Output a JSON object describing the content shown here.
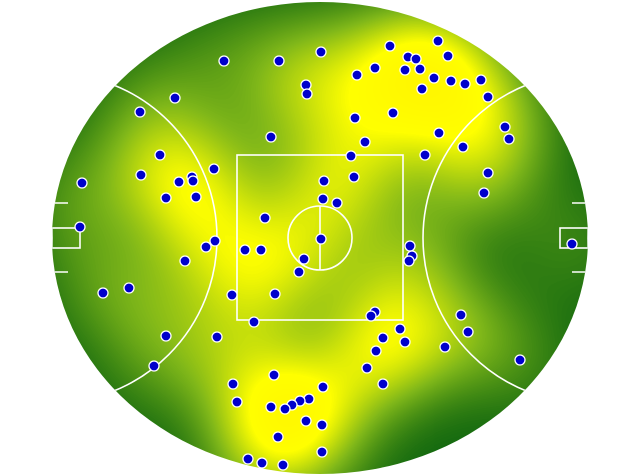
{
  "chart_data": {
    "type": "scatter",
    "color": "#0000cc",
    "xlim": [
      -268,
      268
    ],
    "ylim": [
      -236,
      236
    ],
    "x": [
      -96,
      -41,
      1,
      70,
      118,
      128,
      88,
      96,
      100,
      85,
      114,
      131,
      145,
      161,
      168,
      37,
      55,
      -14,
      -13,
      -145,
      -180,
      102,
      73,
      35,
      -49,
      45,
      119,
      185,
      189,
      143,
      105,
      31,
      -160,
      -179,
      -106,
      -141,
      -128,
      -127,
      -238,
      -154,
      -124,
      34,
      4,
      168,
      164,
      3,
      17,
      -55,
      -240,
      -105,
      -114,
      -75,
      -59,
      1,
      90,
      92,
      89,
      -16,
      252,
      -135,
      -21,
      -217,
      -191,
      -88,
      -45,
      55,
      51,
      141,
      -66,
      80,
      148,
      63,
      -154,
      -103,
      85,
      125,
      56,
      200,
      -166,
      47,
      -46,
      -87,
      3,
      63,
      -83,
      -11,
      -20,
      -28,
      -35,
      -49,
      -14,
      2,
      -42,
      -72,
      -58,
      -37,
      2
    ],
    "y": [
      177,
      177,
      186,
      192,
      197,
      182,
      181,
      179,
      169,
      168,
      160,
      157,
      154,
      158,
      141,
      163,
      170,
      153,
      144,
      140,
      126,
      149,
      125,
      120,
      101,
      96,
      105,
      111,
      99,
      91,
      83,
      82,
      83,
      63,
      69,
      56,
      61,
      57,
      55,
      40,
      41,
      61,
      57,
      65,
      45,
      39,
      35,
      20,
      11,
      -3,
      -9,
      -12,
      -12,
      -1,
      -8,
      -18,
      -23,
      -21,
      -6,
      -23,
      -34,
      -55,
      -50,
      -57,
      -56,
      -74,
      -78,
      -77,
      -84,
      -91,
      -94,
      -100,
      -98,
      -99,
      -104,
      -109,
      -113,
      -122,
      -128,
      -130,
      -137,
      -146,
      -149,
      -146,
      -164,
      -161,
      -163,
      -167,
      -171,
      -169,
      -183,
      -187,
      -199,
      -221,
      -225,
      -227,
      -214
    ]
  }
}
